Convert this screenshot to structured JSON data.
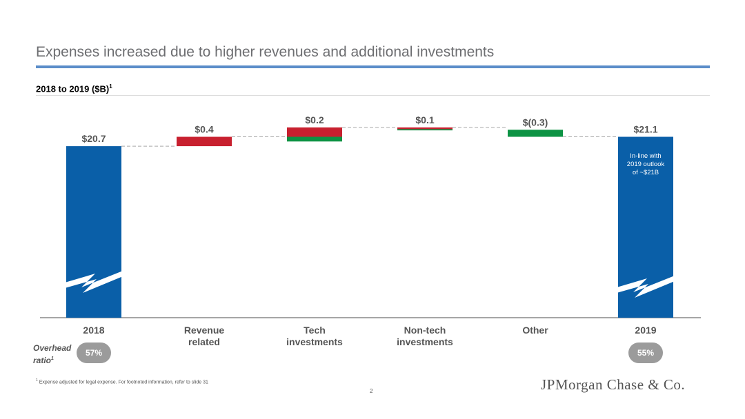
{
  "title": "Expenses increased due to higher revenues and additional investments",
  "subtitle": "2018 to 2019 ($B)",
  "subtitle_sup": "1",
  "colors": {
    "total": "#0a5fa8",
    "increase": "#c8202f",
    "decrease": "#0d9344",
    "title_rule": "#5b8dc9",
    "pill": "#9b9b9b"
  },
  "chart_data": {
    "type": "bar",
    "subtype": "waterfall",
    "categories": [
      "2018",
      "Revenue related",
      "Tech investments",
      "Non-tech investments",
      "Other",
      "2019"
    ],
    "bars": [
      {
        "label": "$20.7",
        "kind": "total",
        "start": 0,
        "end": 20.7
      },
      {
        "label": "$0.4",
        "kind": "increase",
        "start": 20.7,
        "end": 21.1
      },
      {
        "label": "$0.2",
        "kind": "split",
        "increase": 0.4,
        "decrease": 0.2,
        "net": 0.2
      },
      {
        "label": "$0.1",
        "kind": "split",
        "increase": 0.1,
        "decrease": 0.05,
        "net": 0.1
      },
      {
        "label": "$(0.3)",
        "kind": "decrease",
        "start": 21.4,
        "end": 21.1
      },
      {
        "label": "$21.1",
        "kind": "total",
        "start": 0,
        "end": 21.1
      }
    ],
    "axis_break": true,
    "annotation": "In-line with 2019 outlook of ~$21B",
    "xlabel": "",
    "ylabel": ""
  },
  "overhead": {
    "label_line1": "Overhead",
    "label_line2": "ratio",
    "sup": "1",
    "value_2018": "57%",
    "value_2019": "55%"
  },
  "footnote": {
    "sup": "1",
    "text": "Expense adjusted for legal expense. For footnoted information, refer to slide 31"
  },
  "page_number": "2",
  "logo_text": "JPMorgan Chase & Co."
}
